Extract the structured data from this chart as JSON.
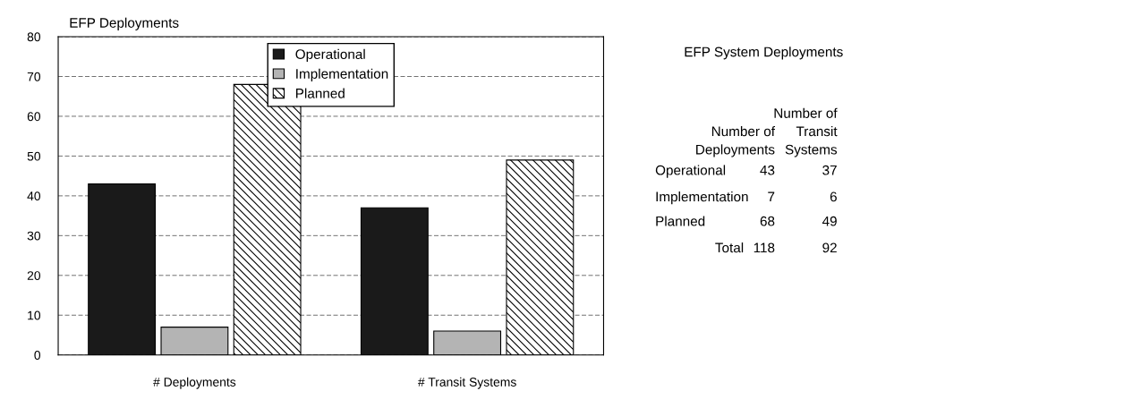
{
  "chart_data": [
    {
      "type": "bar",
      "ylabel": "EFP Deployments",
      "categories": [
        "# Deployments",
        "# Transit Systems"
      ],
      "series": [
        {
          "name": "Operational",
          "color": "#1a1a1a",
          "values": [
            43,
            37
          ]
        },
        {
          "name": "Implementation",
          "color": "#b4b4b4",
          "values": [
            7,
            6
          ]
        },
        {
          "name": "Planned",
          "color": "#000000",
          "values": [
            68,
            49
          ]
        }
      ],
      "ylim": [
        0,
        80
      ],
      "yticks": [
        0,
        10,
        20,
        30,
        40,
        50,
        60,
        70,
        80
      ],
      "grid": "y",
      "legend": "top"
    },
    {
      "type": "other",
      "title": "EFP System Deployments",
      "categories": [
        "Number of Deployments",
        "Number of Transit Systems"
      ],
      "series": [
        {
          "name": "Operational",
          "values": [
            43,
            37
          ]
        },
        {
          "name": "Implementation",
          "values": [
            7,
            6
          ]
        },
        {
          "name": "Planned",
          "values": [
            68,
            49
          ]
        }
      ],
      "data_labels": true,
      "annotations": [
        "Total",
        "118",
        "92"
      ]
    }
  ]
}
